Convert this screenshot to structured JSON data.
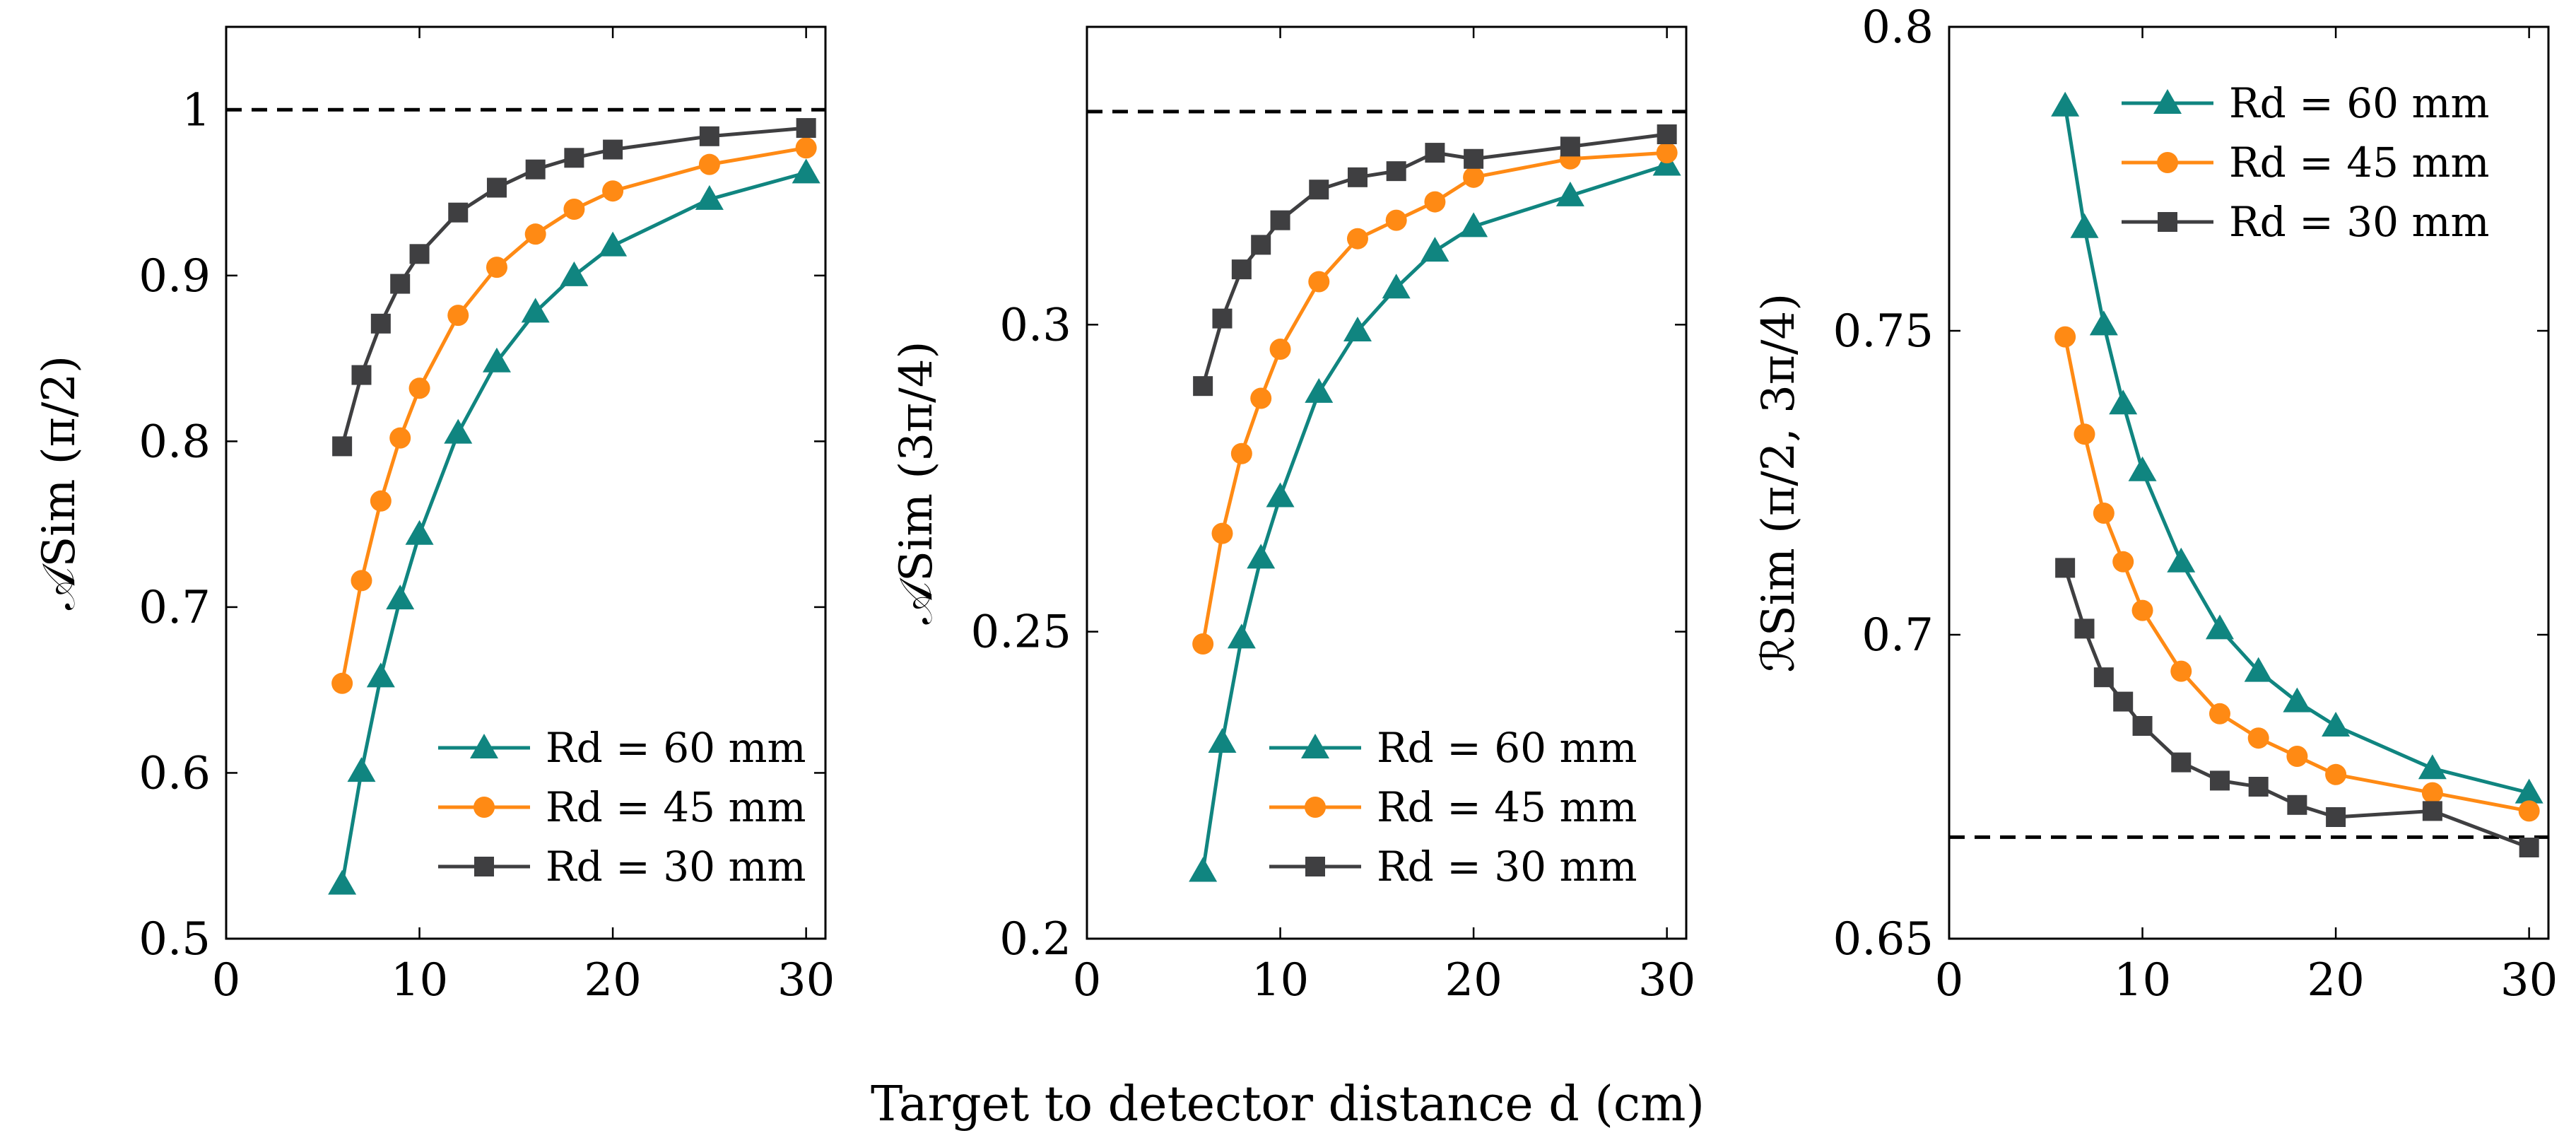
{
  "figure": {
    "common_xlabel": "Target to detector distance d (cm)"
  },
  "colors": {
    "teal": "#108580",
    "orange": "#FF8A14",
    "dark": "#3F3F41",
    "reference_line": "#000000"
  },
  "chart_data": [
    {
      "type": "line",
      "ylabel": "𝒜Sim (π/2)",
      "xlim": [
        0,
        31
      ],
      "ylim": [
        0.5,
        1.05
      ],
      "xticks": [
        0,
        10,
        20,
        30
      ],
      "xtick_labels": [
        "0",
        "10",
        "20",
        "30"
      ],
      "yticks": [
        0.5,
        0.6,
        0.7,
        0.8,
        0.9,
        1.0
      ],
      "ytick_labels": [
        "0.5",
        "0.6",
        "0.7",
        "0.8",
        "0.9",
        "1"
      ],
      "reference_line": 1.0,
      "legend_position": "bottom-right",
      "series": [
        {
          "name": "Rd = 60 mm",
          "color_key": "teal",
          "marker": "triangle",
          "x": [
            6,
            7,
            8,
            9,
            10,
            12,
            14,
            16,
            18,
            20,
            25,
            30
          ],
          "y": [
            0.533,
            0.601,
            0.658,
            0.705,
            0.744,
            0.805,
            0.848,
            0.878,
            0.9,
            0.918,
            0.946,
            0.962
          ]
        },
        {
          "name": "Rd = 45 mm",
          "color_key": "orange",
          "marker": "circle",
          "x": [
            6,
            7,
            8,
            9,
            10,
            12,
            14,
            16,
            18,
            20,
            25,
            30
          ],
          "y": [
            0.654,
            0.716,
            0.764,
            0.802,
            0.832,
            0.876,
            0.905,
            0.925,
            0.94,
            0.951,
            0.967,
            0.977
          ]
        },
        {
          "name": "Rd = 30 mm",
          "color_key": "dark",
          "marker": "square",
          "x": [
            6,
            7,
            8,
            9,
            10,
            12,
            14,
            16,
            18,
            20,
            25,
            30
          ],
          "y": [
            0.797,
            0.84,
            0.871,
            0.895,
            0.913,
            0.938,
            0.953,
            0.964,
            0.971,
            0.976,
            0.984,
            0.989
          ]
        }
      ]
    },
    {
      "type": "line",
      "ylabel": "𝒜Sim (3π/4)",
      "xlim": [
        0,
        31
      ],
      "ylim": [
        0.2,
        0.3485
      ],
      "xticks": [
        0,
        10,
        20,
        30
      ],
      "xtick_labels": [
        "0",
        "10",
        "20",
        "30"
      ],
      "yticks": [
        0.2,
        0.25,
        0.3
      ],
      "ytick_labels": [
        "0.2",
        "0.25",
        "0.3"
      ],
      "reference_line": 0.3347,
      "legend_position": "bottom-right",
      "series": [
        {
          "name": "Rd = 60 mm",
          "color_key": "teal",
          "marker": "triangle",
          "x": [
            6,
            7,
            8,
            9,
            10,
            12,
            14,
            16,
            18,
            20,
            25,
            30
          ],
          "y": [
            0.211,
            0.232,
            0.249,
            0.262,
            0.272,
            0.289,
            0.299,
            0.306,
            0.312,
            0.316,
            0.321,
            0.326
          ]
        },
        {
          "name": "Rd = 45 mm",
          "color_key": "orange",
          "marker": "circle",
          "x": [
            6,
            7,
            8,
            9,
            10,
            12,
            14,
            16,
            18,
            20,
            25,
            30
          ],
          "y": [
            0.248,
            0.266,
            0.279,
            0.288,
            0.296,
            0.307,
            0.314,
            0.317,
            0.32,
            0.324,
            0.327,
            0.328
          ]
        },
        {
          "name": "Rd = 30 mm",
          "color_key": "dark",
          "marker": "square",
          "x": [
            6,
            7,
            8,
            9,
            10,
            12,
            14,
            16,
            18,
            20,
            25,
            30
          ],
          "y": [
            0.29,
            0.301,
            0.309,
            0.313,
            0.317,
            0.322,
            0.324,
            0.325,
            0.328,
            0.327,
            0.329,
            0.331
          ]
        }
      ]
    },
    {
      "type": "line",
      "ylabel": "ℛSim (π/2, 3π/4)",
      "xlim": [
        0,
        31
      ],
      "ylim": [
        0.65,
        0.8
      ],
      "xticks": [
        0,
        10,
        20,
        30
      ],
      "xtick_labels": [
        "0",
        "10",
        "20",
        "30"
      ],
      "yticks": [
        0.65,
        0.7,
        0.75,
        0.8
      ],
      "ytick_labels": [
        "0.65",
        "0.7",
        "0.75",
        "0.8"
      ],
      "reference_line": 0.6667,
      "legend_position": "top-right",
      "series": [
        {
          "name": "Rd = 60 mm",
          "color_key": "teal",
          "marker": "triangle",
          "x": [
            6,
            7,
            8,
            9,
            10,
            12,
            14,
            16,
            18,
            20,
            25,
            30
          ],
          "y": [
            0.787,
            0.767,
            0.751,
            0.738,
            0.727,
            0.712,
            0.701,
            0.694,
            0.689,
            0.685,
            0.678,
            0.674
          ]
        },
        {
          "name": "Rd = 45 mm",
          "color_key": "orange",
          "marker": "circle",
          "x": [
            6,
            7,
            8,
            9,
            10,
            12,
            14,
            16,
            18,
            20,
            25,
            30
          ],
          "y": [
            0.749,
            0.733,
            0.72,
            0.712,
            0.704,
            0.694,
            0.687,
            0.683,
            0.68,
            0.677,
            0.674,
            0.671
          ]
        },
        {
          "name": "Rd = 30 mm",
          "color_key": "dark",
          "marker": "square",
          "x": [
            6,
            7,
            8,
            9,
            10,
            12,
            14,
            16,
            18,
            20,
            25,
            30
          ],
          "y": [
            0.711,
            0.701,
            0.693,
            0.689,
            0.685,
            0.679,
            0.676,
            0.675,
            0.672,
            0.67,
            0.671,
            0.665
          ]
        }
      ]
    }
  ]
}
